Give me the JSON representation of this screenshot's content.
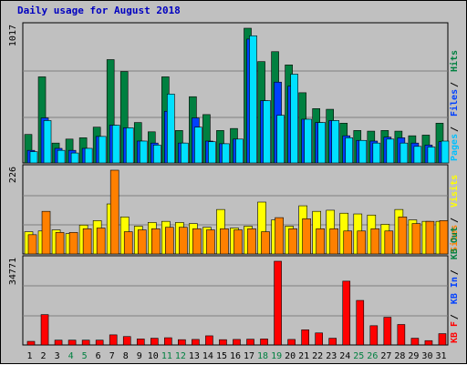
{
  "title": "Daily usage for August 2018",
  "chart_data": [
    {
      "type": "bar",
      "panel": "top",
      "ymax_label": "1017",
      "categories": [
        "1",
        "2",
        "3",
        "4",
        "5",
        "6",
        "7",
        "8",
        "9",
        "10",
        "11",
        "12",
        "13",
        "14",
        "15",
        "16",
        "17",
        "18",
        "19",
        "20",
        "21",
        "22",
        "23",
        "24",
        "25",
        "26",
        "27",
        "28",
        "29",
        "30",
        "31"
      ],
      "series": [
        {
          "name": "Hits",
          "color": "#008040",
          "values": [
            215,
            650,
            150,
            180,
            190,
            270,
            780,
            690,
            305,
            235,
            650,
            245,
            500,
            365,
            245,
            260,
            1017,
            765,
            840,
            740,
            530,
            410,
            405,
            300,
            245,
            240,
            245,
            240,
            205,
            210,
            300
          ]
        },
        {
          "name": "Files",
          "color": "#0040ff",
          "values": [
            95,
            340,
            110,
            95,
            110,
            200,
            285,
            265,
            165,
            150,
            390,
            150,
            340,
            165,
            145,
            180,
            935,
            470,
            610,
            580,
            330,
            305,
            320,
            205,
            170,
            165,
            195,
            190,
            150,
            135,
            160
          ]
        },
        {
          "name": "Pages",
          "color": "#00e0ff",
          "values": [
            85,
            320,
            95,
            75,
            110,
            200,
            285,
            265,
            165,
            135,
            520,
            150,
            270,
            160,
            145,
            180,
            960,
            470,
            360,
            670,
            330,
            305,
            320,
            190,
            170,
            150,
            180,
            150,
            125,
            120,
            165
          ]
        }
      ],
      "right_labels": [
        {
          "text": "Pages",
          "color": "#00c0ff"
        },
        {
          "text": "Files",
          "color": "#0040ff"
        },
        {
          "text": "Hits",
          "color": "#008040"
        }
      ]
    },
    {
      "type": "bar",
      "panel": "middle",
      "ymax_label": "226",
      "categories": [
        "1",
        "2",
        "3",
        "4",
        "5",
        "6",
        "7",
        "8",
        "9",
        "10",
        "11",
        "12",
        "13",
        "14",
        "15",
        "16",
        "17",
        "18",
        "19",
        "20",
        "21",
        "22",
        "23",
        "24",
        "25",
        "26",
        "27",
        "28",
        "29",
        "30",
        "31"
      ],
      "series": [
        {
          "name": "Visits",
          "color": "#ffff00",
          "values": [
            60,
            62,
            65,
            55,
            78,
            90,
            135,
            100,
            75,
            85,
            88,
            85,
            82,
            72,
            120,
            70,
            75,
            140,
            92,
            75,
            130,
            115,
            118,
            110,
            108,
            105,
            80,
            120,
            92,
            88,
            88
          ]
        },
        {
          "name": "Sites",
          "color": "#ff8000",
          "values": [
            52,
            115,
            58,
            58,
            68,
            70,
            226,
            60,
            65,
            68,
            72,
            72,
            68,
            65,
            68,
            65,
            68,
            60,
            98,
            68,
            95,
            68,
            68,
            62,
            62,
            68,
            62,
            100,
            82,
            88,
            90
          ]
        }
      ],
      "right_labels": [
        {
          "text": "Sites",
          "color": "#ff8000"
        },
        {
          "text": "Visits",
          "color": "#ffff00"
        }
      ]
    },
    {
      "type": "bar",
      "panel": "bottom",
      "ymax_label": "34771",
      "categories": [
        "1",
        "2",
        "3",
        "4",
        "5",
        "6",
        "7",
        "8",
        "9",
        "10",
        "11",
        "12",
        "13",
        "14",
        "15",
        "16",
        "17",
        "18",
        "19",
        "20",
        "21",
        "22",
        "23",
        "24",
        "25",
        "26",
        "27",
        "28",
        "29",
        "30",
        "31"
      ],
      "series": [
        {
          "name": "KB F",
          "color": "#ff0000",
          "values": [
            1500,
            12600,
            2000,
            2000,
            2000,
            2000,
            4200,
            3500,
            2500,
            2800,
            3000,
            2200,
            2300,
            3800,
            2200,
            2300,
            2400,
            2500,
            34771,
            2300,
            6300,
            5000,
            2800,
            26500,
            18500,
            8000,
            11500,
            8500,
            2800,
            1800,
            4700
          ]
        }
      ],
      "right_labels": [
        {
          "text": "KB F",
          "color": "#ff0000"
        },
        {
          "text": "KB In",
          "color": "#0040ff"
        },
        {
          "text": "KB Out",
          "color": "#008040"
        }
      ]
    }
  ],
  "x_labels": [
    {
      "text": "1",
      "color": "#000000"
    },
    {
      "text": "2",
      "color": "#000000"
    },
    {
      "text": "3",
      "color": "#000000"
    },
    {
      "text": "4",
      "color": "#008040"
    },
    {
      "text": "5",
      "color": "#008040"
    },
    {
      "text": "6",
      "color": "#000000"
    },
    {
      "text": "7",
      "color": "#000000"
    },
    {
      "text": "8",
      "color": "#000000"
    },
    {
      "text": "9",
      "color": "#000000"
    },
    {
      "text": "10",
      "color": "#000000"
    },
    {
      "text": "11",
      "color": "#008040"
    },
    {
      "text": "12",
      "color": "#008040"
    },
    {
      "text": "13",
      "color": "#000000"
    },
    {
      "text": "14",
      "color": "#000000"
    },
    {
      "text": "15",
      "color": "#000000"
    },
    {
      "text": "16",
      "color": "#000000"
    },
    {
      "text": "17",
      "color": "#000000"
    },
    {
      "text": "18",
      "color": "#008040"
    },
    {
      "text": "19",
      "color": "#008040"
    },
    {
      "text": "20",
      "color": "#000000"
    },
    {
      "text": "21",
      "color": "#000000"
    },
    {
      "text": "22",
      "color": "#000000"
    },
    {
      "text": "23",
      "color": "#000000"
    },
    {
      "text": "24",
      "color": "#000000"
    },
    {
      "text": "25",
      "color": "#008040"
    },
    {
      "text": "26",
      "color": "#008040"
    },
    {
      "text": "27",
      "color": "#000000"
    },
    {
      "text": "28",
      "color": "#000000"
    },
    {
      "text": "29",
      "color": "#000000"
    },
    {
      "text": "30",
      "color": "#000000"
    },
    {
      "text": "31",
      "color": "#000000"
    }
  ],
  "separator_color": "#000000",
  "panel_bg": "#c0c0c0"
}
